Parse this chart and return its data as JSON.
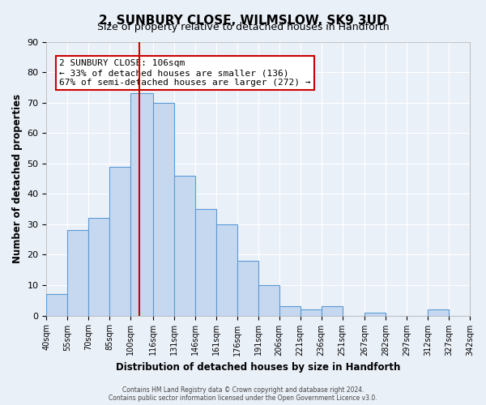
{
  "title": "2, SUNBURY CLOSE, WILMSLOW, SK9 3UD",
  "subtitle": "Size of property relative to detached houses in Handforth",
  "xlabel": "Distribution of detached houses by size in Handforth",
  "ylabel": "Number of detached properties",
  "bar_color": "#c5d8f0",
  "bar_edge_color": "#5b9bd5",
  "background_color": "#eaf0f8",
  "grid_color": "#ffffff",
  "bins": [
    40,
    55,
    70,
    85,
    100,
    116,
    131,
    146,
    161,
    176,
    191,
    206,
    221,
    236,
    251,
    267,
    282,
    297,
    312,
    327,
    342
  ],
  "counts": [
    7,
    28,
    32,
    49,
    73,
    70,
    46,
    35,
    30,
    18,
    10,
    3,
    2,
    3,
    0,
    1,
    0,
    0,
    2,
    0
  ],
  "tick_labels": [
    "40sqm",
    "55sqm",
    "70sqm",
    "85sqm",
    "100sqm",
    "116sqm",
    "131sqm",
    "146sqm",
    "161sqm",
    "176sqm",
    "191sqm",
    "206sqm",
    "221sqm",
    "236sqm",
    "251sqm",
    "267sqm",
    "282sqm",
    "297sqm",
    "312sqm",
    "327sqm",
    "342sqm"
  ],
  "ylim": [
    0,
    90
  ],
  "yticks": [
    0,
    10,
    20,
    30,
    40,
    50,
    60,
    70,
    80,
    90
  ],
  "property_line_x": 106,
  "property_line_color": "#cc0000",
  "annotation_text_line1": "2 SUNBURY CLOSE: 106sqm",
  "annotation_text_line2": "← 33% of detached houses are smaller (136)",
  "annotation_text_line3": "67% of semi-detached houses are larger (272) →",
  "footer_line1": "Contains HM Land Registry data © Crown copyright and database right 2024.",
  "footer_line2": "Contains public sector information licensed under the Open Government Licence v3.0."
}
